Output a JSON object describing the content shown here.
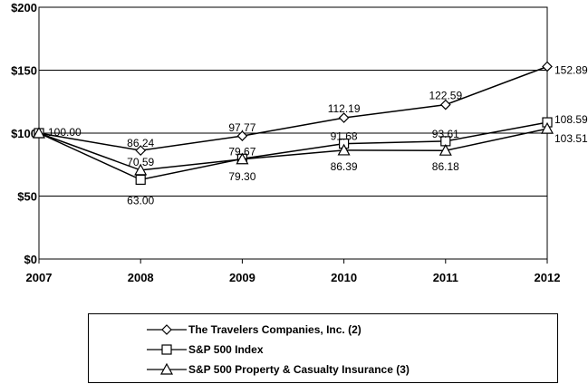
{
  "chart_data": {
    "type": "line",
    "title": "",
    "xlabel": "",
    "ylabel": "",
    "categories": [
      "2007",
      "2008",
      "2009",
      "2010",
      "2011",
      "2012"
    ],
    "ylim": [
      0,
      200
    ],
    "yticks": [
      0,
      50,
      100,
      150,
      200
    ],
    "ytick_labels": [
      "$0",
      "$50",
      "$100",
      "$150",
      "$200"
    ],
    "grid": true,
    "legend_position": "bottom",
    "series": [
      {
        "name": "The Travelers Companies, Inc. (2)",
        "marker": "diamond",
        "values": [
          100,
          86.24,
          97.77,
          112.19,
          122.59,
          152.89
        ],
        "labels": [
          "100.00",
          "86.24",
          "97.77",
          "112.19",
          "122.59",
          "152.89"
        ]
      },
      {
        "name": "S&P 500 Index",
        "marker": "square",
        "values": [
          100,
          63.0,
          79.67,
          91.68,
          93.61,
          108.59
        ],
        "labels": [
          "",
          "63.00",
          "79.67",
          "91.68",
          "93.61",
          "108.59"
        ]
      },
      {
        "name": "S&P 500 Property & Casualty Insurance (3)",
        "marker": "triangle",
        "values": [
          100,
          70.59,
          79.3,
          86.39,
          86.18,
          103.51
        ],
        "labels": [
          "",
          "70.59",
          "79.30",
          "86.39",
          "86.18",
          "103.51"
        ]
      }
    ]
  }
}
